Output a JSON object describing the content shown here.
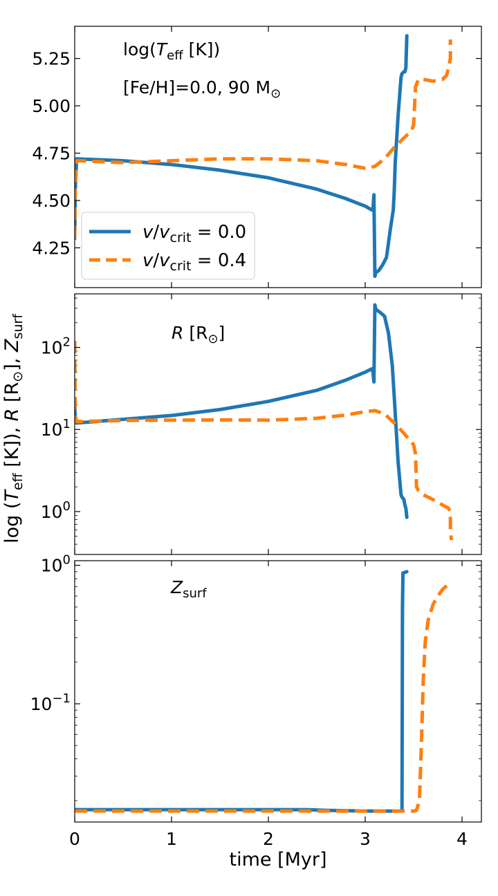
{
  "chart_data": [
    {
      "type": "line",
      "panel": "top",
      "yscale": "linear",
      "xlim": [
        0,
        4.2
      ],
      "ylim": [
        4.04,
        5.42
      ],
      "y_ticks": [
        4.25,
        4.5,
        4.75,
        5.0,
        5.25
      ],
      "y_tick_labels": [
        "4.25",
        "4.50",
        "4.75",
        "5.00",
        "5.25"
      ],
      "annotations": [
        "log(T_eff [K])",
        "[Fe/H]=0.0, 90 M_⊙"
      ],
      "legend": {
        "placement": "lower-left",
        "entries": [
          "v/v_crit = 0.0",
          "v/v_crit = 0.4"
        ]
      },
      "series": [
        {
          "name": "v/v_crit = 0.0",
          "color": "#1f77b4",
          "style": "solid",
          "x": [
            0,
            0.005,
            0.02,
            0.5,
            1.0,
            1.5,
            2.0,
            2.5,
            2.8,
            3.0,
            3.07,
            3.08,
            3.09,
            3.1,
            3.11,
            3.14,
            3.18,
            3.22,
            3.26,
            3.29,
            3.3,
            3.31,
            3.34,
            3.37,
            3.38,
            3.4,
            3.41,
            3.42,
            3.43
          ],
          "y": [
            4.3,
            4.55,
            4.72,
            4.71,
            4.69,
            4.66,
            4.62,
            4.56,
            4.51,
            4.47,
            4.45,
            4.45,
            4.53,
            4.1,
            4.12,
            4.13,
            4.16,
            4.2,
            4.35,
            4.45,
            4.55,
            4.7,
            4.95,
            5.15,
            5.17,
            5.18,
            5.18,
            5.2,
            5.37
          ]
        },
        {
          "name": "v/v_crit = 0.4",
          "color": "#ff7f0e",
          "style": "dashed",
          "x": [
            0,
            0.005,
            0.02,
            0.5,
            1.0,
            1.5,
            2.0,
            2.5,
            2.8,
            3.0,
            3.1,
            3.2,
            3.3,
            3.4,
            3.48,
            3.5,
            3.52,
            3.55,
            3.6,
            3.7,
            3.8,
            3.84,
            3.86,
            3.88,
            3.88
          ],
          "y": [
            4.3,
            4.55,
            4.71,
            4.7,
            4.71,
            4.72,
            4.72,
            4.71,
            4.69,
            4.67,
            4.68,
            4.72,
            4.78,
            4.83,
            4.87,
            4.9,
            5.1,
            5.14,
            5.14,
            5.13,
            5.14,
            5.16,
            5.2,
            5.25,
            5.35
          ]
        }
      ]
    },
    {
      "type": "line",
      "panel": "middle",
      "yscale": "log",
      "xlim": [
        0,
        4.2
      ],
      "ylim": [
        0.3,
        450
      ],
      "y_ticks": [
        1,
        10,
        100
      ],
      "y_tick_labels": [
        "10^0",
        "10^1",
        "10^2"
      ],
      "annotations": [
        "R [R_⊙]"
      ],
      "series": [
        {
          "name": "v/v_crit = 0.0",
          "color": "#1f77b4",
          "style": "solid",
          "x": [
            0,
            0.005,
            0.02,
            0.5,
            1.0,
            1.5,
            2.0,
            2.5,
            2.8,
            3.0,
            3.07,
            3.08,
            3.09,
            3.1,
            3.11,
            3.15,
            3.2,
            3.24,
            3.28,
            3.3,
            3.32,
            3.34,
            3.36,
            3.37,
            3.38,
            3.4,
            3.41,
            3.42,
            3.43
          ],
          "y": [
            20,
            13.5,
            12,
            13.3,
            14.8,
            17.5,
            22,
            30,
            40,
            50,
            55,
            50,
            38,
            330,
            290,
            270,
            240,
            150,
            60,
            25,
            10,
            4,
            2.2,
            1.6,
            1.5,
            1.4,
            1.2,
            1.1,
            0.85
          ]
        },
        {
          "name": "v/v_crit = 0.4",
          "color": "#ff7f0e",
          "style": "dashed",
          "x": [
            0,
            0.005,
            0.02,
            0.5,
            1.0,
            1.5,
            2.0,
            2.5,
            2.8,
            3.0,
            3.1,
            3.2,
            3.3,
            3.4,
            3.5,
            3.52,
            3.53,
            3.55,
            3.6,
            3.7,
            3.8,
            3.86,
            3.88,
            3.88,
            3.89
          ],
          "y": [
            120,
            15,
            12.5,
            12.9,
            13.0,
            13.1,
            13.0,
            13.7,
            15,
            16.5,
            17,
            15.5,
            12,
            9,
            6.5,
            5,
            2,
            1.8,
            1.6,
            1.4,
            1.2,
            1.1,
            1.0,
            0.6,
            0.45
          ]
        }
      ]
    },
    {
      "type": "line",
      "panel": "bottom",
      "yscale": "log",
      "xlim": [
        0,
        4.2
      ],
      "ylim": [
        0.014,
        1.08
      ],
      "y_ticks": [
        0.1,
        1
      ],
      "y_tick_labels": [
        "10^-1",
        "10^0"
      ],
      "annotations": [
        "Z_surf"
      ],
      "series": [
        {
          "name": "v/v_crit = 0.0",
          "color": "#1f77b4",
          "style": "solid",
          "x": [
            0,
            0.5,
            1.0,
            1.5,
            2.0,
            2.4,
            2.6,
            3.0,
            3.38,
            3.385,
            3.39,
            3.43
          ],
          "y": [
            0.0172,
            0.0172,
            0.0172,
            0.0172,
            0.0172,
            0.0172,
            0.017,
            0.0168,
            0.0168,
            0.5,
            0.88,
            0.9
          ]
        },
        {
          "name": "v/v_crit = 0.4",
          "color": "#ff7f0e",
          "style": "dashed",
          "x": [
            0,
            0.5,
            1.0,
            1.5,
            2.0,
            2.5,
            3.0,
            3.5,
            3.53,
            3.56,
            3.58,
            3.6,
            3.62,
            3.65,
            3.7,
            3.75,
            3.8,
            3.85,
            3.89
          ],
          "y": [
            0.0168,
            0.0168,
            0.0168,
            0.0168,
            0.0168,
            0.0168,
            0.0168,
            0.0168,
            0.017,
            0.02,
            0.05,
            0.15,
            0.28,
            0.4,
            0.52,
            0.6,
            0.67,
            0.72,
            0.76
          ]
        }
      ]
    }
  ],
  "axes": {
    "x_label": "time [Myr]",
    "y_label": "log (T_eff [K]), R [R_⊙], Z_surf",
    "x_ticks": [
      0,
      1,
      2,
      3,
      4
    ],
    "x_tick_labels": [
      "0",
      "1",
      "2",
      "3",
      "4"
    ]
  }
}
